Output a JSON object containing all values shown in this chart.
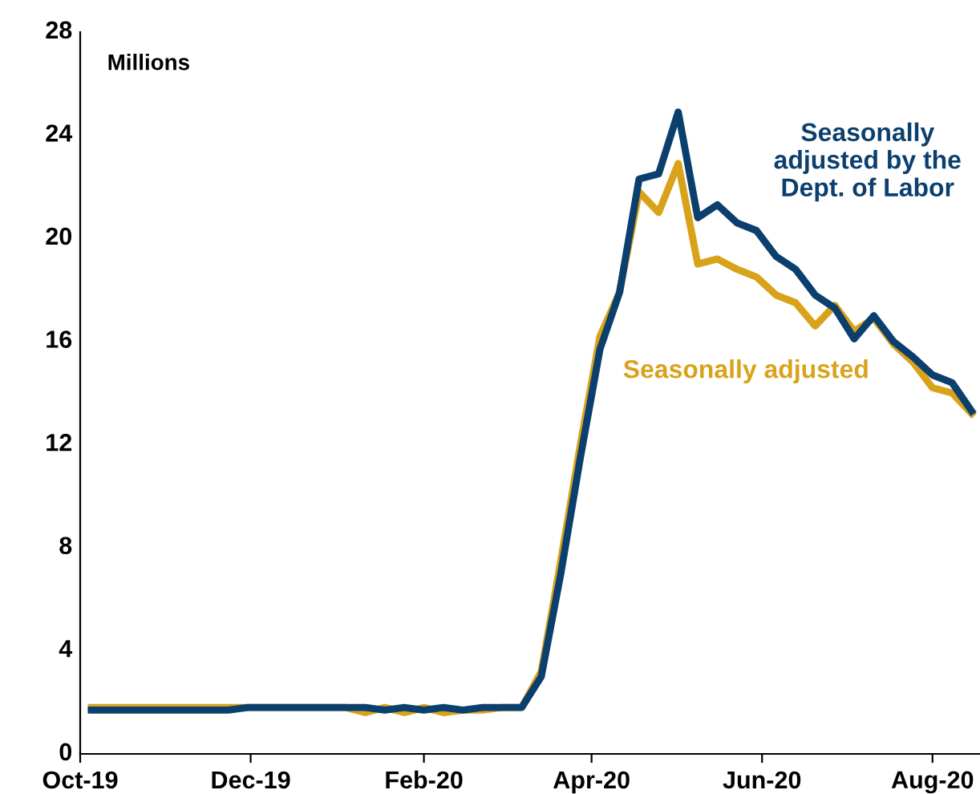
{
  "chart_data": {
    "type": "line",
    "ylabel": "Millions",
    "legend": false,
    "grid": false,
    "marker": "none",
    "line_style": "solid",
    "x": [
      "2019-10-05",
      "2019-10-12",
      "2019-10-19",
      "2019-10-26",
      "2019-11-02",
      "2019-11-09",
      "2019-11-16",
      "2019-11-23",
      "2019-11-30",
      "2019-12-07",
      "2019-12-14",
      "2019-12-21",
      "2019-12-28",
      "2020-01-04",
      "2020-01-11",
      "2020-01-18",
      "2020-01-25",
      "2020-02-01",
      "2020-02-08",
      "2020-02-15",
      "2020-02-22",
      "2020-02-29",
      "2020-03-07",
      "2020-03-14",
      "2020-03-21",
      "2020-03-28",
      "2020-04-04",
      "2020-04-11",
      "2020-04-18",
      "2020-04-25",
      "2020-05-02",
      "2020-05-09",
      "2020-05-16",
      "2020-05-23",
      "2020-05-30",
      "2020-06-06",
      "2020-06-13",
      "2020-06-20",
      "2020-06-27",
      "2020-07-04",
      "2020-07-11",
      "2020-07-18",
      "2020-07-25",
      "2020-08-01",
      "2020-08-08",
      "2020-08-15"
    ],
    "series": [
      {
        "name": "Seasonally adjusted by the Dept. of Labor",
        "color": "#0b3f6e",
        "values": [
          1.7,
          1.7,
          1.7,
          1.7,
          1.7,
          1.7,
          1.7,
          1.7,
          1.8,
          1.8,
          1.8,
          1.8,
          1.8,
          1.8,
          1.8,
          1.7,
          1.8,
          1.7,
          1.8,
          1.7,
          1.8,
          1.8,
          1.8,
          3.0,
          7.0,
          11.5,
          15.7,
          17.9,
          22.3,
          22.5,
          24.9,
          20.8,
          21.3,
          20.6,
          20.3,
          19.3,
          18.8,
          17.8,
          17.3,
          16.1,
          17.0,
          16.0,
          15.4,
          14.7,
          14.4,
          13.3
        ]
      },
      {
        "name": "Seasonally adjusted",
        "color": "#d9a21b",
        "values": [
          1.8,
          1.8,
          1.8,
          1.8,
          1.8,
          1.8,
          1.8,
          1.8,
          1.8,
          1.8,
          1.8,
          1.8,
          1.8,
          1.8,
          1.6,
          1.8,
          1.6,
          1.8,
          1.6,
          1.7,
          1.7,
          1.8,
          1.8,
          3.2,
          7.5,
          12.0,
          16.2,
          17.9,
          21.8,
          21.0,
          22.9,
          19.0,
          19.2,
          18.8,
          18.5,
          17.8,
          17.5,
          16.6,
          17.4,
          16.4,
          16.9,
          15.9,
          15.2,
          14.2,
          14.0,
          13.2
        ]
      }
    ],
    "xlim": [
      "2019-10-01",
      "2020-08-18"
    ],
    "xticks": [
      {
        "value": "2019-10-01",
        "label": "Oct-19"
      },
      {
        "value": "2019-12-01",
        "label": "Dec-19"
      },
      {
        "value": "2020-02-01",
        "label": "Feb-20"
      },
      {
        "value": "2020-04-01",
        "label": "Apr-20"
      },
      {
        "value": "2020-06-01",
        "label": "Jun-20"
      },
      {
        "value": "2020-08-01",
        "label": "Aug-20"
      }
    ],
    "ylim": [
      0,
      28
    ],
    "yticks": [
      0,
      4,
      8,
      12,
      16,
      20,
      24,
      28
    ]
  }
}
